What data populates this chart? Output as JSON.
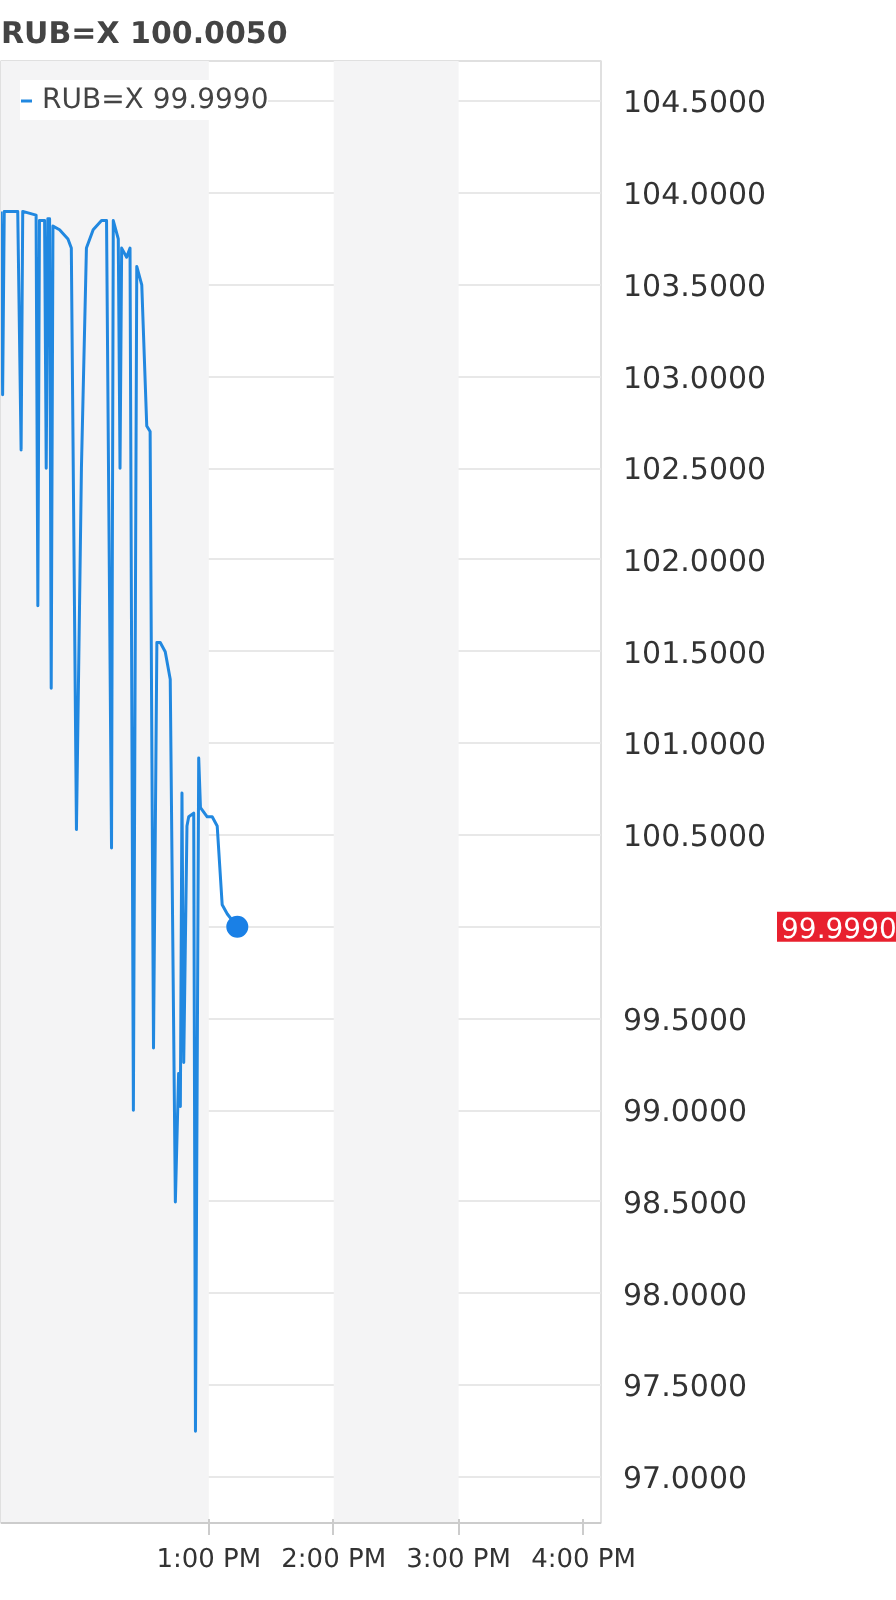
{
  "chart_data": {
    "type": "line",
    "title": "RUB=X 100.0050",
    "xlim": [
      11.336,
      16.14
    ],
    "ylim": [
      96.75,
      104.72
    ],
    "xticks": [
      {
        "value": 13,
        "label": "1:00 PM"
      },
      {
        "value": 14,
        "label": "2:00 PM"
      },
      {
        "value": 15,
        "label": "3:00 PM"
      },
      {
        "value": 16,
        "label": "4:00 PM"
      }
    ],
    "yticks": [
      {
        "value": 97,
        "label": "97.0000"
      },
      {
        "value": 97.5,
        "label": "97.5000"
      },
      {
        "value": 98,
        "label": "98.0000"
      },
      {
        "value": 98.5,
        "label": "98.5000"
      },
      {
        "value": 99,
        "label": "99.0000"
      },
      {
        "value": 99.5,
        "label": "99.5000"
      },
      {
        "value": 100,
        "label": null
      },
      {
        "value": 100.5,
        "label": "100.5000"
      },
      {
        "value": 101,
        "label": "101.0000"
      },
      {
        "value": 101.5,
        "label": "101.5000"
      },
      {
        "value": 102,
        "label": "102.0000"
      },
      {
        "value": 102.5,
        "label": "102.5000"
      },
      {
        "value": 103,
        "label": "103.0000"
      },
      {
        "value": 103.5,
        "label": "103.5000"
      },
      {
        "value": 104,
        "label": "104.0000"
      },
      {
        "value": 104.5,
        "label": "104.5000"
      }
    ],
    "grid": "y",
    "legend": "top left",
    "marker": "none",
    "line_style": "solid",
    "bands": [
      {
        "axis": "x",
        "from": 11.336,
        "to": 13,
        "color": "#f4f4f5"
      },
      {
        "axis": "x",
        "from": 14,
        "to": 15,
        "color": "#f4f4f5"
      }
    ],
    "annotations": [
      "99.9990"
    ],
    "series": [
      {
        "name": "RUB=X 99.9990",
        "color": "#2188e0",
        "x": [
          11.336,
          11.349,
          11.362,
          11.47,
          11.497,
          11.51,
          11.617,
          11.631,
          11.644,
          11.685,
          11.698,
          11.711,
          11.725,
          11.738,
          11.752,
          11.805,
          11.872,
          11.899,
          11.94,
          11.98,
          12.02,
          12.074,
          12.141,
          12.181,
          12.221,
          12.235,
          12.275,
          12.289,
          12.302,
          12.342,
          12.369,
          12.396,
          12.423,
          12.463,
          12.503,
          12.53,
          12.557,
          12.584,
          12.611,
          12.651,
          12.691,
          12.732,
          12.758,
          12.772,
          12.785,
          12.799,
          12.825,
          12.839,
          12.879,
          12.893,
          12.919,
          12.933,
          12.987,
          13.027,
          13.067,
          13.107,
          13.148,
          13.228
        ],
        "values": [
          103.9,
          102.9,
          103.9,
          103.9,
          102.6,
          103.9,
          103.88,
          101.75,
          103.85,
          103.85,
          102.5,
          103.86,
          103.86,
          101.3,
          103.82,
          103.8,
          103.75,
          103.7,
          100.53,
          102.5,
          103.7,
          103.8,
          103.85,
          103.85,
          100.43,
          103.85,
          103.75,
          102.5,
          103.7,
          103.65,
          103.7,
          99.0,
          103.6,
          103.5,
          102.73,
          102.7,
          99.34,
          101.55,
          101.55,
          101.5,
          101.35,
          98.5,
          99.2,
          99.02,
          100.73,
          99.26,
          100.55,
          100.6,
          100.62,
          97.25,
          100.92,
          100.65,
          100.6,
          100.6,
          100.55,
          100.12,
          100.07,
          100.0
        ]
      },
      {
        "type": "scatter",
        "color": "#1a80e6",
        "marker": "circle",
        "x": [
          13.228
        ],
        "values": [
          100.0
        ]
      }
    ]
  }
}
